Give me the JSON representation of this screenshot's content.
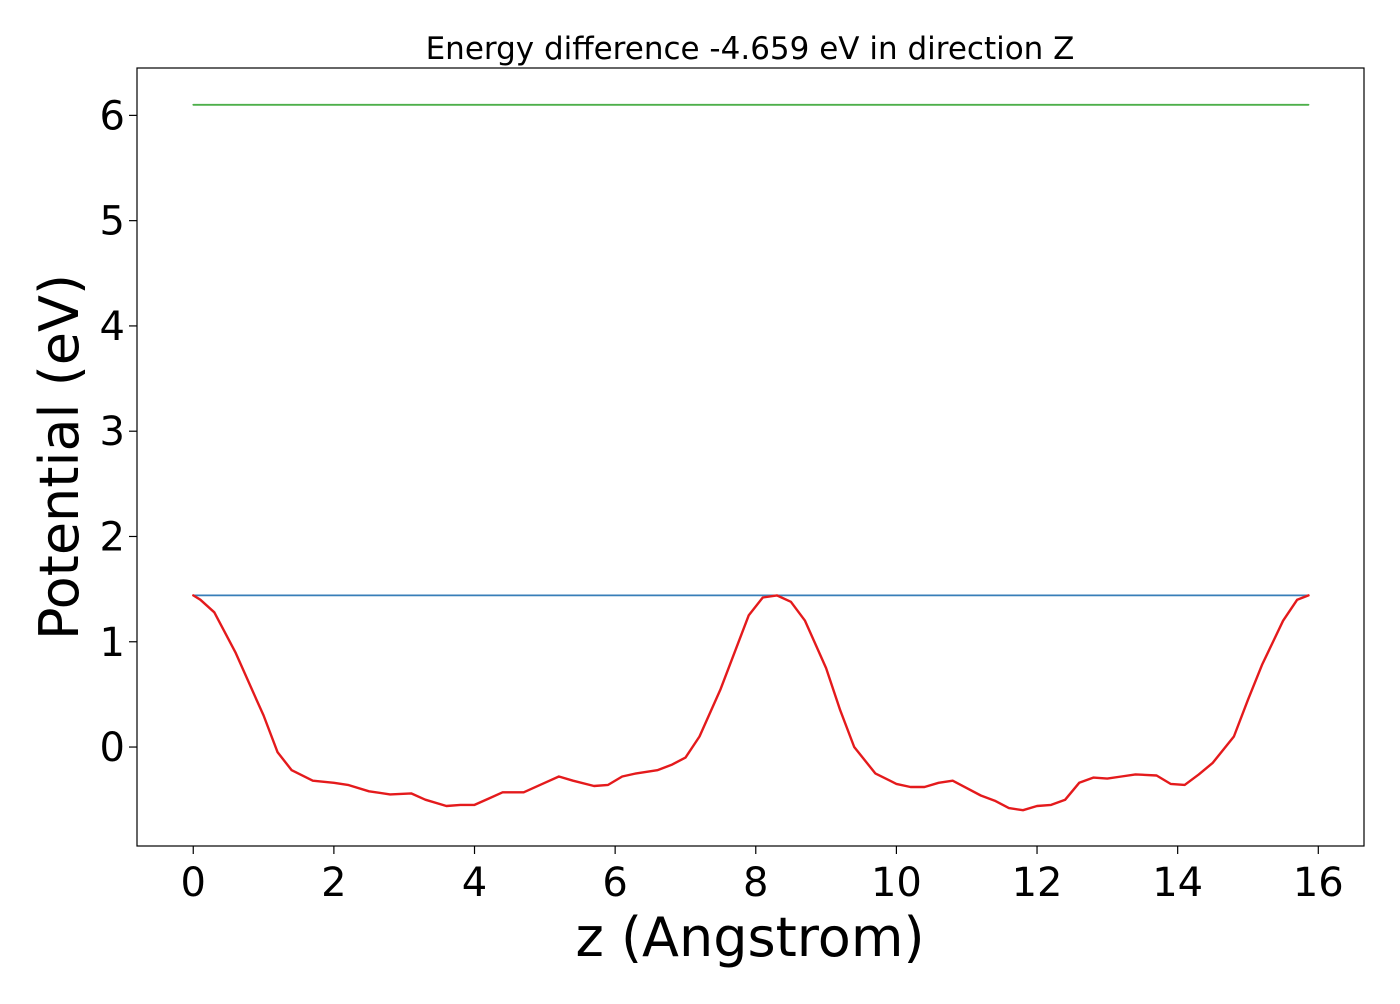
{
  "chart_data": {
    "type": "line",
    "title": "Energy difference -4.659 eV in direction Z",
    "xlabel": "z (Angstrom)",
    "ylabel": "Potential (eV)",
    "xlim": [
      -0.8,
      16.65
    ],
    "ylim": [
      -0.94,
      6.45
    ],
    "xticks": [
      0,
      2,
      4,
      6,
      8,
      10,
      12,
      14,
      16
    ],
    "yticks": [
      0,
      1,
      2,
      3,
      4,
      5,
      6
    ],
    "grid": false,
    "colors": {
      "red_series": "#e41a1c",
      "blue_series": "#377eb8",
      "green_series": "#4daf4a"
    },
    "series": [
      {
        "color": "#4daf4a",
        "x": [
          0,
          15.86
        ],
        "y": [
          6.1,
          6.1
        ]
      },
      {
        "color": "#377eb8",
        "x": [
          0,
          15.86
        ],
        "y": [
          1.44,
          1.44
        ]
      },
      {
        "color": "#e41a1c",
        "x": [
          0,
          0.1,
          0.3,
          0.6,
          0.9,
          1.0,
          1.2,
          1.4,
          1.7,
          2.0,
          2.2,
          2.5,
          2.8,
          3.1,
          3.3,
          3.6,
          3.8,
          4.0,
          4.2,
          4.4,
          4.7,
          5.0,
          5.2,
          5.4,
          5.7,
          5.9,
          6.1,
          6.3,
          6.6,
          6.8,
          7.0,
          7.2,
          7.5,
          7.9,
          8.1,
          8.3,
          8.5,
          8.7,
          9.0,
          9.2,
          9.4,
          9.7,
          10.0,
          10.2,
          10.4,
          10.6,
          10.8,
          11.0,
          11.2,
          11.4,
          11.6,
          11.8,
          12.0,
          12.2,
          12.4,
          12.6,
          12.8,
          13.0,
          13.2,
          13.4,
          13.7,
          13.9,
          14.1,
          14.3,
          14.5,
          14.8,
          15.0,
          15.2,
          15.5,
          15.7,
          15.86
        ],
        "y": [
          1.44,
          1.4,
          1.28,
          0.9,
          0.45,
          0.3,
          -0.05,
          -0.22,
          -0.32,
          -0.34,
          -0.36,
          -0.42,
          -0.45,
          -0.44,
          -0.5,
          -0.56,
          -0.55,
          -0.55,
          -0.49,
          -0.43,
          -0.43,
          -0.34,
          -0.28,
          -0.32,
          -0.37,
          -0.36,
          -0.28,
          -0.25,
          -0.22,
          -0.17,
          -0.1,
          0.1,
          0.55,
          1.25,
          1.42,
          1.44,
          1.38,
          1.2,
          0.75,
          0.35,
          0.0,
          -0.25,
          -0.35,
          -0.38,
          -0.38,
          -0.34,
          -0.32,
          -0.39,
          -0.46,
          -0.51,
          -0.58,
          -0.6,
          -0.56,
          -0.55,
          -0.5,
          -0.34,
          -0.29,
          -0.3,
          -0.28,
          -0.26,
          -0.27,
          -0.35,
          -0.36,
          -0.26,
          -0.15,
          0.1,
          0.45,
          0.78,
          1.2,
          1.4,
          1.44
        ]
      }
    ]
  }
}
